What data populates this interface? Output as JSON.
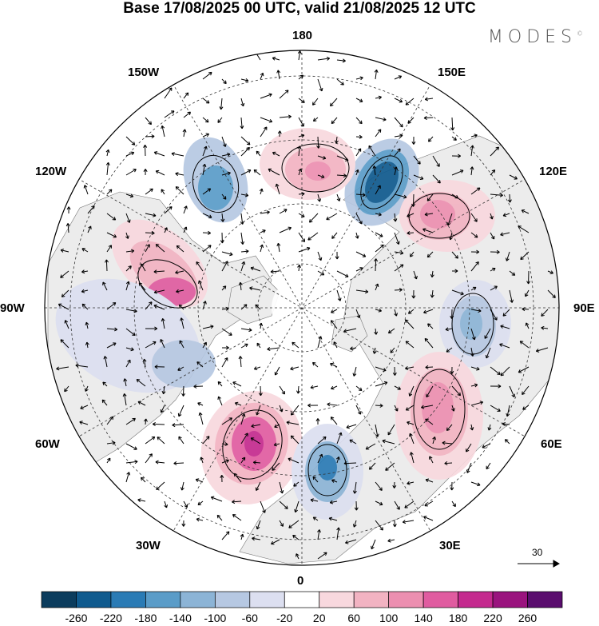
{
  "header": {
    "title": "Base 17/08/2025 00 UTC, valid 21/08/2025 12 UTC",
    "brand": "MODES",
    "brand_mark": "©"
  },
  "map": {
    "projection": "north-polar-stereographic",
    "longitude_labels": [
      "180",
      "150E",
      "120E",
      "90E",
      "60E",
      "30E",
      "0",
      "30W",
      "60W",
      "90W",
      "120W",
      "150W"
    ],
    "reference_vector": "30"
  },
  "colorbar": {
    "ticks": [
      "-260",
      "-220",
      "-180",
      "-140",
      "-100",
      "-60",
      "-20",
      "20",
      "60",
      "100",
      "140",
      "180",
      "220",
      "260"
    ],
    "colors": [
      "#0b3c5d",
      "#0f5a8e",
      "#2a7bb5",
      "#5a9cc8",
      "#8cb4d6",
      "#b6c8e2",
      "#dcdff0",
      "#ffffff",
      "#f8d8de",
      "#f2b3c2",
      "#ec8fb0",
      "#e05ca0",
      "#c42a8e",
      "#9a137e",
      "#5a0d6e"
    ]
  }
}
